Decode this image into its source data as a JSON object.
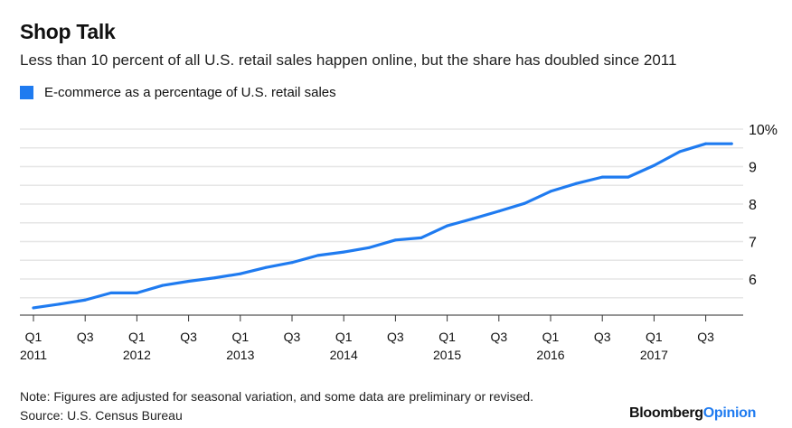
{
  "title": "Shop Talk",
  "subtitle": "Less than 10 percent of all U.S. retail sales happen online, but the share has doubled since 2011",
  "note": "Note: Figures are adjusted for seasonal variation, and some data are preliminary or revised.",
  "source": "Source: U.S. Census Bureau",
  "logo": {
    "brand": "Bloomberg",
    "section": "Opinion"
  },
  "colors": {
    "series": "#1f7bf0",
    "grid": "#e6e6e6",
    "axis": "#555555"
  },
  "chart_data": {
    "type": "line",
    "title": "Shop Talk",
    "legend_position": "top-left",
    "grid": true,
    "ylim": [
      5.05,
      10
    ],
    "y_ticks": [
      {
        "value": 6,
        "label": "6"
      },
      {
        "value": 7,
        "label": "7"
      },
      {
        "value": 8,
        "label": "8"
      },
      {
        "value": 9,
        "label": "9"
      },
      {
        "value": 10,
        "label": "10%"
      }
    ],
    "x_ticks": [
      {
        "q": "Q1",
        "year": "2011"
      },
      {
        "q": "Q3",
        "year": ""
      },
      {
        "q": "Q1",
        "year": "2012"
      },
      {
        "q": "Q3",
        "year": ""
      },
      {
        "q": "Q1",
        "year": "2013"
      },
      {
        "q": "Q3",
        "year": ""
      },
      {
        "q": "Q1",
        "year": "2014"
      },
      {
        "q": "Q3",
        "year": ""
      },
      {
        "q": "Q1",
        "year": "2015"
      },
      {
        "q": "Q3",
        "year": ""
      },
      {
        "q": "Q1",
        "year": "2016"
      },
      {
        "q": "Q3",
        "year": ""
      },
      {
        "q": "Q1",
        "year": "2017"
      },
      {
        "q": "Q3",
        "year": ""
      }
    ],
    "x": [
      "Q1 2011",
      "Q2 2011",
      "Q3 2011",
      "Q4 2011",
      "Q1 2012",
      "Q2 2012",
      "Q3 2012",
      "Q4 2012",
      "Q1 2013",
      "Q2 2013",
      "Q3 2013",
      "Q4 2013",
      "Q1 2014",
      "Q2 2014",
      "Q3 2014",
      "Q4 2014",
      "Q1 2015",
      "Q2 2015",
      "Q3 2015",
      "Q4 2015",
      "Q1 2016",
      "Q2 2016",
      "Q3 2016",
      "Q4 2016",
      "Q1 2017",
      "Q2 2017",
      "Q3 2017",
      "Q4 2017"
    ],
    "series": [
      {
        "name": "E-commerce as a percentage of U.S. retail sales",
        "values": [
          5.23,
          5.33,
          5.44,
          5.63,
          5.63,
          5.83,
          5.94,
          6.03,
          6.14,
          6.31,
          6.44,
          6.63,
          6.72,
          6.84,
          7.04,
          7.1,
          7.42,
          7.61,
          7.81,
          8.02,
          8.34,
          8.55,
          8.72,
          8.72,
          9.03,
          9.4,
          9.61,
          9.61
        ]
      }
    ]
  }
}
